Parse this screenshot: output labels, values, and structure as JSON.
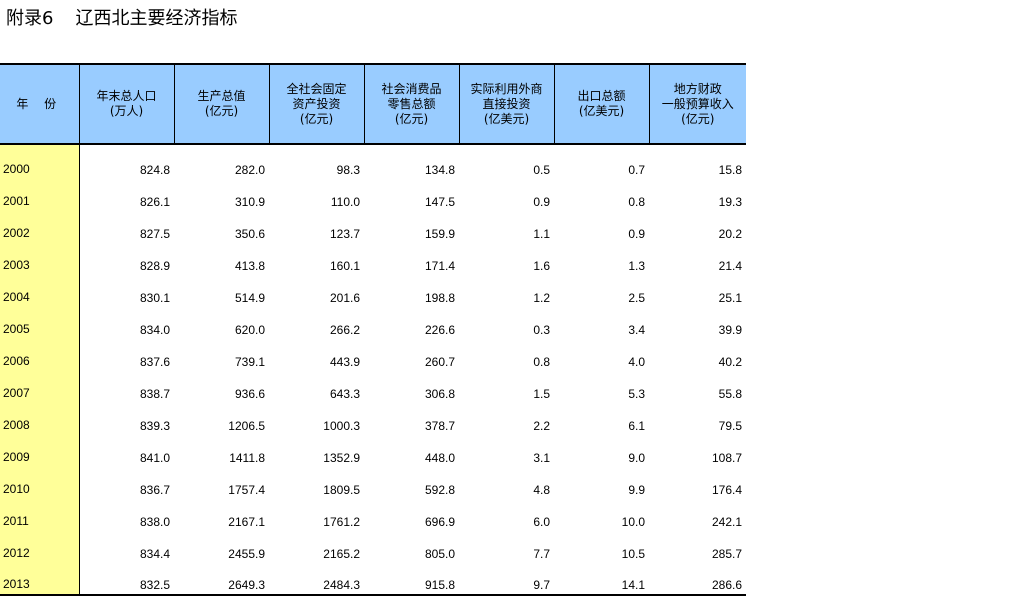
{
  "page": {
    "title_prefix": "附录6",
    "title_main": "辽西北主要经济指标"
  },
  "table": {
    "headers": [
      {
        "lines": [
          "年 份"
        ]
      },
      {
        "lines": [
          "年末总人口",
          "(万人)"
        ]
      },
      {
        "lines": [
          "生产总值",
          "(亿元)"
        ]
      },
      {
        "lines": [
          "全社会固定",
          "资产投资",
          "(亿元)"
        ]
      },
      {
        "lines": [
          "社会消费品",
          "零售总额",
          "(亿元)"
        ]
      },
      {
        "lines": [
          "实际利用外商",
          "直接投资",
          "(亿美元)"
        ]
      },
      {
        "lines": [
          "出口总额",
          "(亿美元)"
        ]
      },
      {
        "lines": [
          "地方财政",
          "一般预算收入",
          "(亿元)"
        ]
      }
    ],
    "rows": [
      [
        "2000",
        "824.8",
        "282.0",
        "98.3",
        "134.8",
        "0.5",
        "0.7",
        "15.8"
      ],
      [
        "2001",
        "826.1",
        "310.9",
        "110.0",
        "147.5",
        "0.9",
        "0.8",
        "19.3"
      ],
      [
        "2002",
        "827.5",
        "350.6",
        "123.7",
        "159.9",
        "1.1",
        "0.9",
        "20.2"
      ],
      [
        "2003",
        "828.9",
        "413.8",
        "160.1",
        "171.4",
        "1.6",
        "1.3",
        "21.4"
      ],
      [
        "2004",
        "830.1",
        "514.9",
        "201.6",
        "198.8",
        "1.2",
        "2.5",
        "25.1"
      ],
      [
        "2005",
        "834.0",
        "620.0",
        "266.2",
        "226.6",
        "0.3",
        "3.4",
        "39.9"
      ],
      [
        "2006",
        "837.6",
        "739.1",
        "443.9",
        "260.7",
        "0.8",
        "4.0",
        "40.2"
      ],
      [
        "2007",
        "838.7",
        "936.6",
        "643.3",
        "306.8",
        "1.5",
        "5.3",
        "55.8"
      ],
      [
        "2008",
        "839.3",
        "1206.5",
        "1000.3",
        "378.7",
        "2.2",
        "6.1",
        "79.5"
      ],
      [
        "2009",
        "841.0",
        "1411.8",
        "1352.9",
        "448.0",
        "3.1",
        "9.0",
        "108.7"
      ],
      [
        "2010",
        "836.7",
        "1757.4",
        "1809.5",
        "592.8",
        "4.8",
        "9.9",
        "176.4"
      ],
      [
        "2011",
        "838.0",
        "2167.1",
        "1761.2",
        "696.9",
        "6.0",
        "10.0",
        "242.1"
      ],
      [
        "2012",
        "834.4",
        "2455.9",
        "2165.2",
        "805.0",
        "7.7",
        "10.5",
        "285.7"
      ],
      [
        "2013",
        "832.5",
        "2649.3",
        "2484.3",
        "915.8",
        "9.7",
        "14.1",
        "286.6"
      ]
    ]
  }
}
